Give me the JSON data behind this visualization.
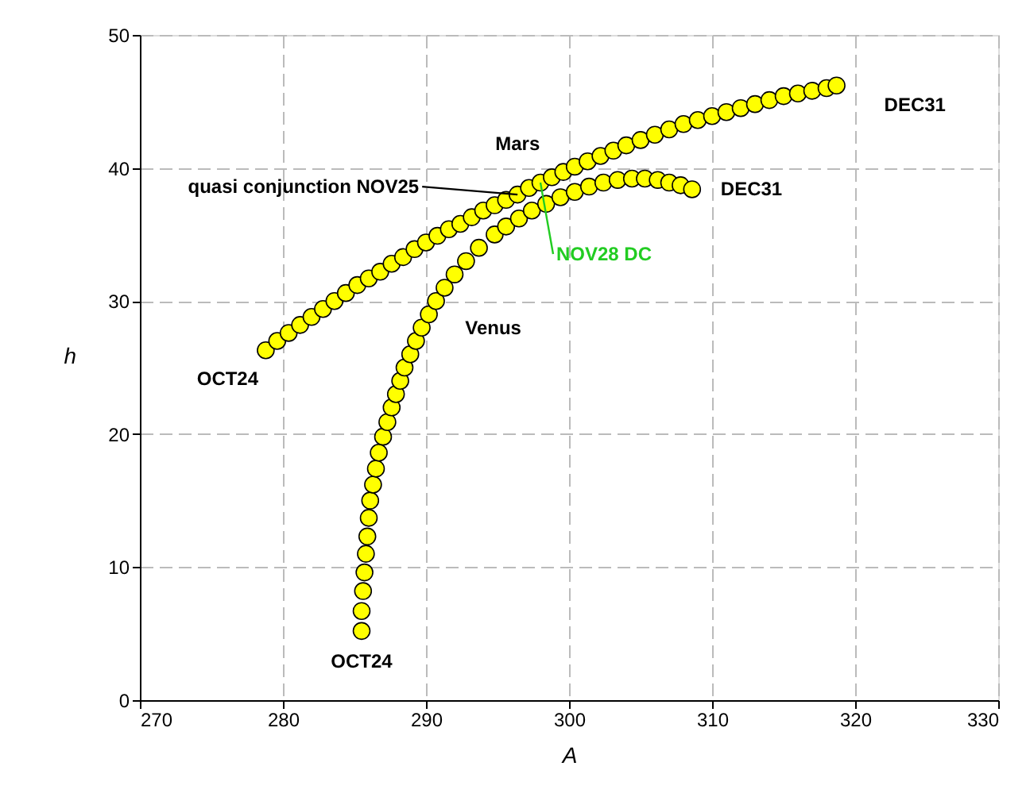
{
  "chart_data": {
    "type": "scatter",
    "xlabel": "A",
    "ylabel": "h",
    "xlim": [
      270,
      330
    ],
    "xticks": [
      270,
      280,
      290,
      300,
      310,
      320,
      330
    ],
    "ylim": [
      0,
      50
    ],
    "yticks": [
      0,
      10,
      20,
      30,
      40,
      50
    ],
    "grid": true,
    "marker": "circle",
    "legend": false,
    "series": [
      {
        "name": "Mars",
        "color": "#ffff00",
        "x": [
          278.8,
          279.6,
          280.4,
          281.2,
          282.0,
          282.8,
          283.6,
          284.4,
          285.2,
          286.0,
          286.8,
          287.6,
          288.4,
          289.2,
          290.0,
          290.8,
          291.6,
          292.4,
          293.2,
          294.0,
          294.8,
          295.6,
          296.4,
          297.2,
          298.0,
          298.8,
          299.6,
          300.4,
          301.3,
          302.2,
          303.1,
          304.0,
          305.0,
          306.0,
          307.0,
          308.0,
          309.0,
          310.0,
          311.0,
          312.0,
          313.0,
          314.0,
          315.0,
          316.0,
          317.0,
          318.0,
          318.7
        ],
        "values": [
          26.3,
          27.0,
          27.6,
          28.2,
          28.8,
          29.4,
          30.0,
          30.6,
          31.2,
          31.7,
          32.2,
          32.8,
          33.3,
          33.9,
          34.4,
          34.9,
          35.4,
          35.8,
          36.3,
          36.8,
          37.2,
          37.6,
          38.0,
          38.5,
          38.9,
          39.3,
          39.7,
          40.1,
          40.5,
          40.9,
          41.3,
          41.7,
          42.1,
          42.5,
          42.9,
          43.3,
          43.6,
          43.9,
          44.2,
          44.5,
          44.8,
          45.1,
          45.4,
          45.6,
          45.8,
          46.0,
          46.2
        ]
      },
      {
        "name": "Venus",
        "color": "#ffff00",
        "x": [
          285.5,
          285.5,
          285.6,
          285.7,
          285.8,
          285.9,
          286.0,
          286.1,
          286.3,
          286.5,
          286.7,
          287.0,
          287.3,
          287.6,
          287.9,
          288.2,
          288.5,
          288.9,
          289.3,
          289.7,
          290.2,
          290.7,
          291.3,
          292.0,
          292.8,
          293.7,
          294.8,
          295.6,
          296.5,
          297.4,
          298.4,
          299.4,
          300.4,
          301.4,
          302.4,
          303.4,
          304.4,
          305.3,
          306.2,
          307.0,
          307.8,
          308.6
        ],
        "values": [
          5.2,
          6.7,
          8.2,
          9.6,
          11.0,
          12.3,
          13.7,
          15.0,
          16.2,
          17.4,
          18.6,
          19.8,
          20.9,
          22.0,
          23.0,
          24.0,
          25.0,
          26.0,
          27.0,
          28.0,
          29.0,
          30.0,
          31.0,
          32.0,
          33.0,
          34.0,
          35.0,
          35.6,
          36.2,
          36.8,
          37.3,
          37.8,
          38.2,
          38.6,
          38.9,
          39.1,
          39.2,
          39.2,
          39.1,
          38.9,
          38.7,
          38.4
        ]
      }
    ],
    "annotations": [
      {
        "text": "OCT24",
        "x": 278.8,
        "y": 26.3
      },
      {
        "text": "OCT24",
        "x": 285.5,
        "y": 5.2
      },
      {
        "text": "DEC31",
        "x": 318.7,
        "y": 46.2
      },
      {
        "text": "DEC31",
        "x": 308.6,
        "y": 38.4
      },
      {
        "text": "quasi conjunction NOV25",
        "x": 296.4,
        "y": 38.0
      },
      {
        "text": "NOV28 DC",
        "x": 298.0,
        "y": 38.9
      }
    ]
  }
}
